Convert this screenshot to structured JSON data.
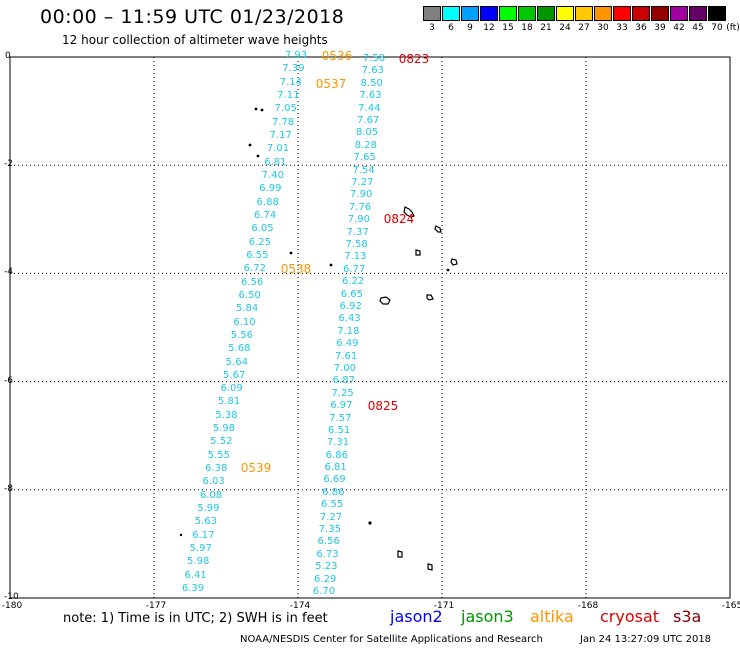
{
  "header": {
    "title": "00:00 – 11:59 UTC 01/23/2018",
    "subtitle": "12 hour collection of altimeter wave heights"
  },
  "legend": {
    "unit_label": "(ft)",
    "bins": [
      {
        "label": "3",
        "color": "#7f7f7f"
      },
      {
        "label": "6",
        "color": "#00ffff"
      },
      {
        "label": "9",
        "color": "#00a0ff"
      },
      {
        "label": "12",
        "color": "#0000ff"
      },
      {
        "label": "15",
        "color": "#00ff00"
      },
      {
        "label": "18",
        "color": "#00c800"
      },
      {
        "label": "21",
        "color": "#009600"
      },
      {
        "label": "24",
        "color": "#ffff00"
      },
      {
        "label": "27",
        "color": "#ffc800"
      },
      {
        "label": "30",
        "color": "#ff9600"
      },
      {
        "label": "33",
        "color": "#ff0000"
      },
      {
        "label": "36",
        "color": "#c80000"
      },
      {
        "label": "39",
        "color": "#960000"
      },
      {
        "label": "42",
        "color": "#a000a0"
      },
      {
        "label": "45",
        "color": "#640064"
      },
      {
        "label": "70",
        "color": "#000000"
      }
    ]
  },
  "map": {
    "lon_range": [
      -180,
      -165
    ],
    "lat_range": [
      -10,
      0
    ],
    "lat_ticks": [
      "0",
      "-2",
      "-4",
      "-6",
      "-8",
      "-10"
    ],
    "lon_ticks": [
      "-180",
      "-177",
      "-174",
      "-171",
      "-168",
      "-165"
    ],
    "grid": "dotted",
    "wave_color": "#1ec8e6"
  },
  "tracks": [
    {
      "name": "track-a",
      "values": [
        "7.93",
        "7.39",
        "7.14",
        "7.11",
        "7.05",
        "7.78",
        "7.17",
        "7.01",
        "6.81",
        "7.40",
        "6.99",
        "6.88",
        "6.74",
        "6.05",
        "6.25",
        "6.55",
        "6.72",
        "6.56",
        "6.50",
        "5.84",
        "6.10",
        "5.56",
        "5.68",
        "5.64",
        "5.67",
        "6.09",
        "5.81",
        "5.38",
        "5.98",
        "5.52",
        "5.55",
        "6.38",
        "6.03",
        "6.08",
        "5.99",
        "5.63",
        "6.17",
        "5.97",
        "5.98",
        "6.41",
        "6.39"
      ]
    },
    {
      "name": "track-b",
      "values": [
        "7.58",
        "7.63",
        "8.50",
        "7.63",
        "7.44",
        "7.67",
        "8.05",
        "8.28",
        "7.65",
        "7.54",
        "7.27",
        "7.90",
        "7.76",
        "7.90",
        "7.37",
        "7.58",
        "7.13",
        "6.77",
        "6.22",
        "6.65",
        "6.92",
        "6.43",
        "7.18",
        "6.49",
        "7.61",
        "7.00",
        "6.87",
        "7.25",
        "6.97",
        "7.57",
        "6.51",
        "7.31",
        "6.86",
        "6.81",
        "6.69",
        "6.86",
        "6.55",
        "7.27",
        "7.35",
        "6.56",
        "6.73",
        "5.23",
        "6.29",
        "6.70"
      ]
    }
  ],
  "pass_times": [
    {
      "label": "0536",
      "color": "#ff9600"
    },
    {
      "label": "0537",
      "color": "#ff9600"
    },
    {
      "label": "0538",
      "color": "#ff9600"
    },
    {
      "label": "0539",
      "color": "#ff9600"
    },
    {
      "label": "0823",
      "color": "#e00000"
    },
    {
      "label": "0824",
      "color": "#e00000"
    },
    {
      "label": "0825",
      "color": "#e00000"
    }
  ],
  "footer": {
    "note": "note:  1) Time is in UTC;  2) SWH is in feet",
    "missions": [
      {
        "label": "jason2",
        "color": "#0000ff"
      },
      {
        "label": "jason3",
        "color": "#009600"
      },
      {
        "label": "altika",
        "color": "#ff9600"
      },
      {
        "label": "cryosat",
        "color": "#e00000"
      },
      {
        "label": "s3a",
        "color": "#800000"
      }
    ],
    "credit": "NOAA/NESDIS Center for Satellite Applications and Research",
    "timestamp": "Jan 24 13:27:09 UTC 2018"
  }
}
